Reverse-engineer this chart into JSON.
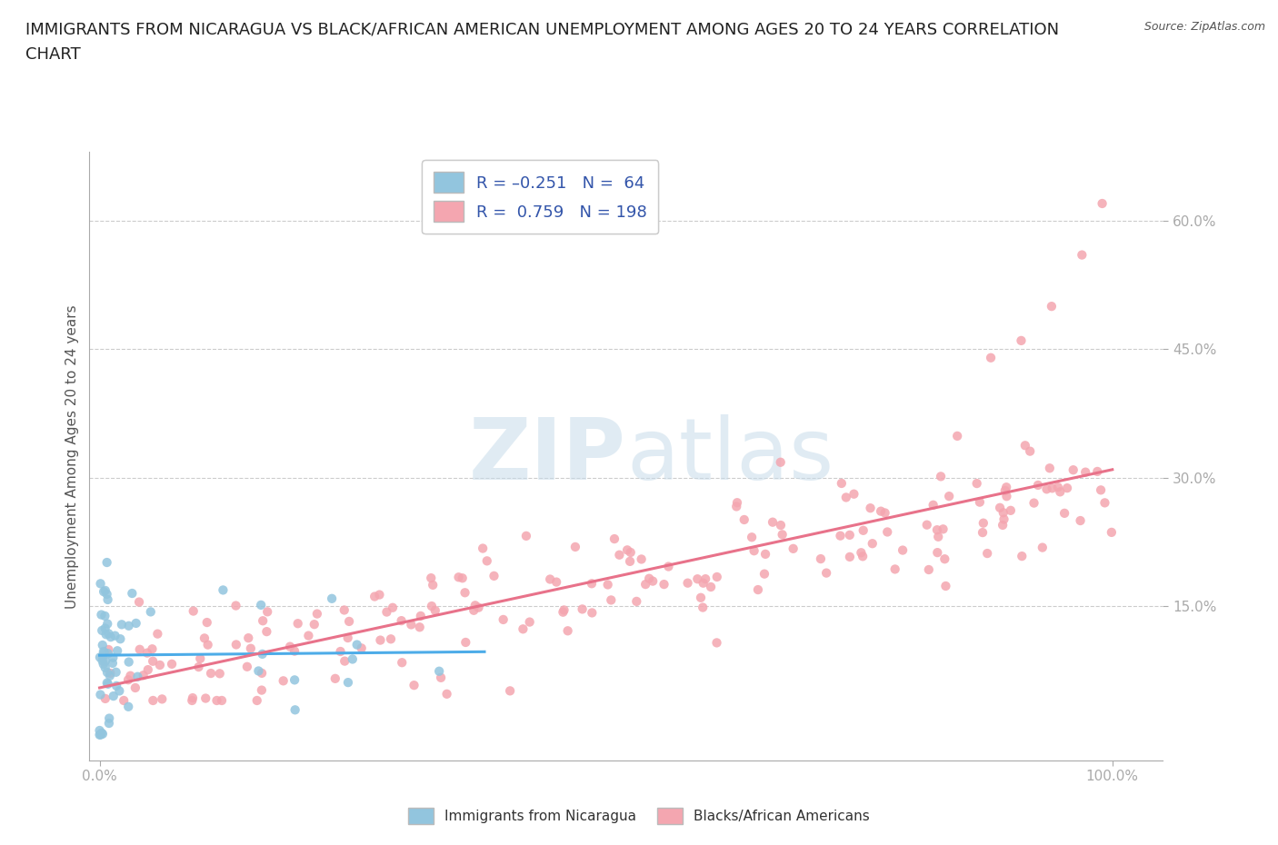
{
  "title_line1": "IMMIGRANTS FROM NICARAGUA VS BLACK/AFRICAN AMERICAN UNEMPLOYMENT AMONG AGES 20 TO 24 YEARS CORRELATION",
  "title_line2": "CHART",
  "source": "Source: ZipAtlas.com",
  "xlabel_start": "0.0%",
  "xlabel_end": "100.0%",
  "ylabel": "Unemployment Among Ages 20 to 24 years",
  "yticks": [
    "15.0%",
    "30.0%",
    "45.0%",
    "60.0%"
  ],
  "ytick_vals": [
    0.15,
    0.3,
    0.45,
    0.6
  ],
  "xlim": [
    -0.01,
    1.05
  ],
  "ylim": [
    -0.03,
    0.68
  ],
  "watermark_zip": "ZIP",
  "watermark_atlas": "atlas",
  "color_nicaragua": "#92C5DE",
  "color_black": "#F4A6B0",
  "color_trend_nicaragua": "#4DACE8",
  "color_trend_black": "#E8728A",
  "scatter_alpha": 0.85,
  "background_color": "#ffffff",
  "grid_color": "#cccccc",
  "title_fontsize": 13,
  "label_fontsize": 11,
  "tick_fontsize": 11,
  "legend_text_color": "#3355AA",
  "axis_color": "#aaaaaa"
}
